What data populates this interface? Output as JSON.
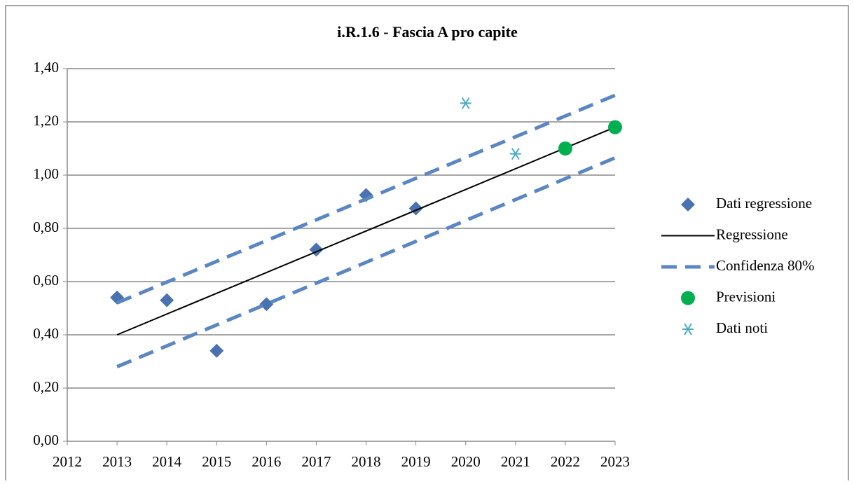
{
  "chart_data": {
    "type": "scatter",
    "title": "i.R.1.6 - Fascia A pro capite",
    "xlim": [
      2012,
      2023
    ],
    "xticks": [
      2012,
      2013,
      2014,
      2015,
      2016,
      2017,
      2018,
      2019,
      2020,
      2021,
      2022,
      2023
    ],
    "ylim": [
      0,
      1.4
    ],
    "yticks": [
      {
        "value": 0,
        "label": "0,00"
      },
      {
        "value": 0.2,
        "label": "0,20"
      },
      {
        "value": 0.4,
        "label": "0,40"
      },
      {
        "value": 0.6,
        "label": "0,60"
      },
      {
        "value": 0.8,
        "label": "0,80"
      },
      {
        "value": 1.0,
        "label": "1,00"
      },
      {
        "value": 1.2,
        "label": "1,20"
      },
      {
        "value": 1.4,
        "label": "1,40"
      }
    ],
    "grid": true,
    "legend": "right",
    "series": [
      {
        "name": "Dati regressione",
        "color": "#4a72b0",
        "marker": "diamond",
        "x": [
          2013,
          2014,
          2015,
          2016,
          2017,
          2018,
          2019
        ],
        "values": [
          0.54,
          0.53,
          0.34,
          0.515,
          0.72,
          0.925,
          0.875
        ]
      },
      {
        "name": "Regressione",
        "color": "#000000",
        "line": "solid",
        "x": [
          2013,
          2023
        ],
        "values": [
          0.4,
          1.18
        ]
      },
      {
        "name": "Confidenza 80%",
        "color": "#5b86c4",
        "line": "dashed",
        "x": [
          2013,
          2023
        ],
        "values": [
          0.52,
          1.3
        ],
        "lower": [
          0.28,
          1.065
        ]
      },
      {
        "name": "Previsioni",
        "color": "#00b050",
        "marker": "circle",
        "x": [
          2022,
          2023
        ],
        "values": [
          1.1,
          1.18
        ]
      },
      {
        "name": "Dati noti",
        "color": "#4bacc6",
        "marker": "star",
        "x": [
          2020,
          2021
        ],
        "values": [
          1.27,
          1.08
        ]
      }
    ]
  }
}
